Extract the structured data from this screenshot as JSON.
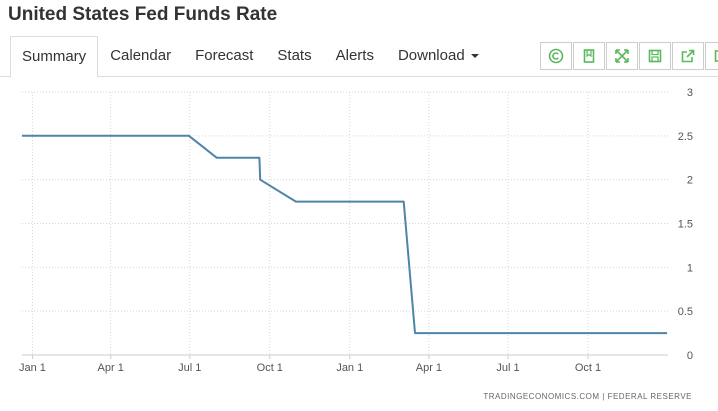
{
  "page": {
    "title": "United States Fed Funds Rate"
  },
  "tabs": [
    {
      "label": "Summary",
      "active": true
    },
    {
      "label": "Calendar",
      "active": false
    },
    {
      "label": "Forecast",
      "active": false
    },
    {
      "label": "Stats",
      "active": false
    },
    {
      "label": "Alerts",
      "active": false
    },
    {
      "label": "Download",
      "active": false
    }
  ],
  "toolbar": {
    "icons": [
      "copyright-icon",
      "bookmark-icon",
      "fullscreen-icon",
      "save-icon",
      "share-icon",
      "more-icon"
    ],
    "accent_color": "#5cb85c"
  },
  "chart_data": {
    "type": "line",
    "title": "",
    "xlabel": "",
    "ylabel": "",
    "ylim": [
      0,
      3
    ],
    "y_ticks": [
      "0",
      "0.5",
      "1",
      "1.5",
      "2",
      "2.5",
      "3"
    ],
    "x_ticks": [
      {
        "label": "Jan 1",
        "date": "2019-01-01"
      },
      {
        "label": "Apr 1",
        "date": "2019-04-01"
      },
      {
        "label": "Jul 1",
        "date": "2019-07-01"
      },
      {
        "label": "Oct 1",
        "date": "2019-10-01"
      },
      {
        "label": "Jan 1",
        "date": "2020-01-01"
      },
      {
        "label": "Apr 1",
        "date": "2020-04-01"
      },
      {
        "label": "Jul 1",
        "date": "2020-07-01"
      },
      {
        "label": "Oct 1",
        "date": "2020-10-01"
      }
    ],
    "grid": true,
    "line_color": "#4d85a8",
    "series": [
      {
        "x": [
          "2018-12-20",
          "2019-06-30",
          "2019-08-01",
          "2019-09-19",
          "2019-09-20",
          "2019-10-31",
          "2019-12-31",
          "2020-03-03",
          "2020-03-16",
          "2020-12-31"
        ],
        "y": [
          2.5,
          2.5,
          2.25,
          2.25,
          2.0,
          1.75,
          1.75,
          1.75,
          0.25,
          0.25
        ]
      }
    ],
    "x_range": [
      "2018-12-20",
      "2021-01-01"
    ],
    "source": "TRADINGECONOMICS.COM  |  FEDERAL RESERVE"
  }
}
